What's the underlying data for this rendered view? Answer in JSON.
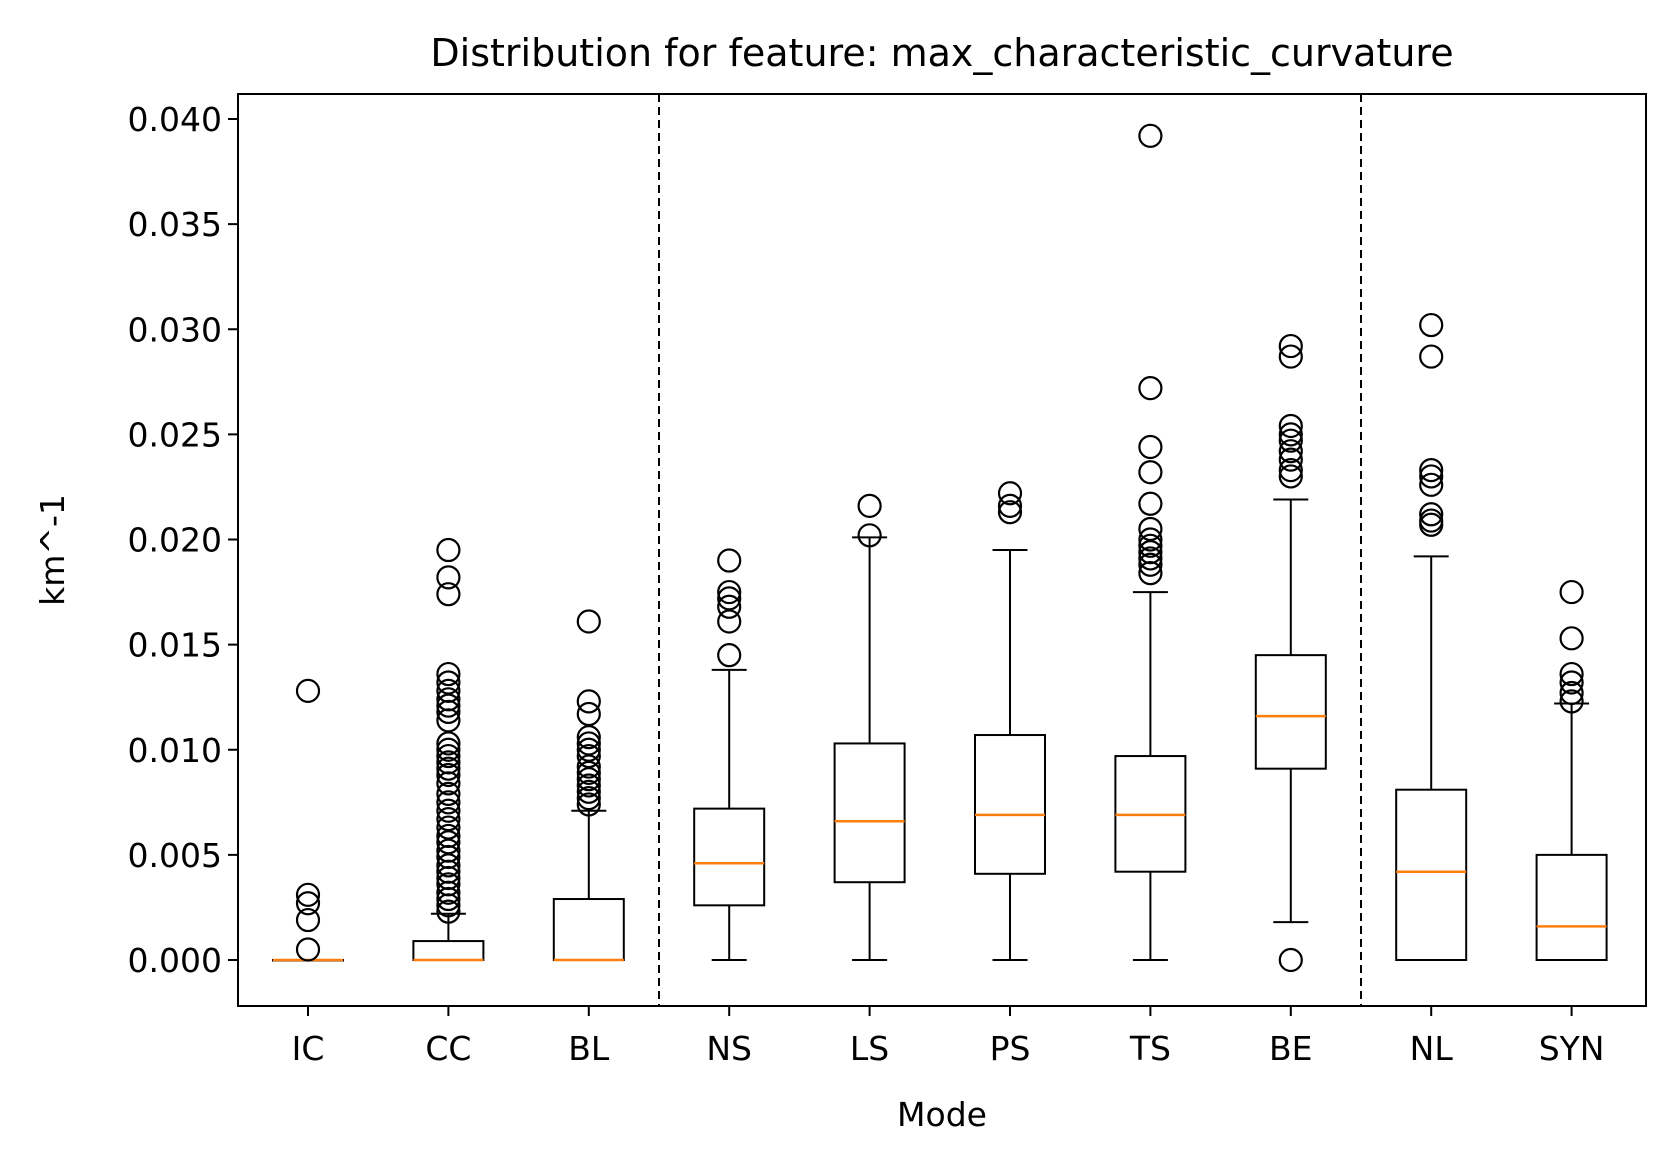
{
  "chart_data": {
    "type": "box",
    "title": "Distribution for feature: max_characteristic_curvature",
    "xlabel": "Mode",
    "ylabel": "km^-1",
    "ylim": [
      -0.002,
      0.041
    ],
    "yticks": [
      0.0,
      0.005,
      0.01,
      0.015,
      0.02,
      0.025,
      0.03,
      0.035,
      0.04
    ],
    "ytick_labels": [
      "0.000",
      "0.005",
      "0.010",
      "0.015",
      "0.020",
      "0.025",
      "0.030",
      "0.035",
      "0.040"
    ],
    "categories": [
      "IC",
      "CC",
      "BL",
      "NS",
      "LS",
      "PS",
      "TS",
      "BE",
      "NL",
      "SYN"
    ],
    "group_separators_after": [
      "BL",
      "BE"
    ],
    "grid": false,
    "colors": {
      "median": "#ff7f0e",
      "box": "#000000",
      "separator": "#000000"
    },
    "boxes": [
      {
        "category": "IC",
        "whisker_low": 0.0,
        "q1": 0.0,
        "median": 0.0,
        "q3": 0.0,
        "whisker_high": 0.0,
        "outliers": [
          0.0128,
          0.0031,
          0.0027,
          0.0019,
          0.0005
        ]
      },
      {
        "category": "CC",
        "whisker_low": 0.0,
        "q1": 0.0,
        "median": 0.0,
        "q3": 0.0009,
        "whisker_high": 0.0022,
        "outliers": [
          0.0195,
          0.0182,
          0.0174,
          0.0136,
          0.0132,
          0.0128,
          0.0124,
          0.0121,
          0.0118,
          0.0114,
          0.0103,
          0.01,
          0.0097,
          0.0094,
          0.0091,
          0.0088,
          0.0084,
          0.0079,
          0.0075,
          0.0071,
          0.0067,
          0.0063,
          0.0059,
          0.0056,
          0.0052,
          0.0049,
          0.0045,
          0.0042,
          0.0039,
          0.0036,
          0.0032,
          0.0029,
          0.0026,
          0.0023
        ]
      },
      {
        "category": "BL",
        "whisker_low": 0.0,
        "q1": 0.0,
        "median": 0.0,
        "q3": 0.0029,
        "whisker_high": 0.0071,
        "outliers": [
          0.0161,
          0.0123,
          0.0117,
          0.0106,
          0.0103,
          0.01,
          0.0097,
          0.0092,
          0.0089,
          0.0086,
          0.0083,
          0.008,
          0.0077,
          0.0074
        ]
      },
      {
        "category": "NS",
        "whisker_low": 0.0,
        "q1": 0.0026,
        "median": 0.0046,
        "q3": 0.0072,
        "whisker_high": 0.0138,
        "outliers": [
          0.019,
          0.0175,
          0.0172,
          0.0168,
          0.0161,
          0.0145
        ]
      },
      {
        "category": "LS",
        "whisker_low": 0.0,
        "q1": 0.0037,
        "median": 0.0066,
        "q3": 0.0103,
        "whisker_high": 0.0201,
        "outliers": [
          0.0216,
          0.0202
        ]
      },
      {
        "category": "PS",
        "whisker_low": 0.0,
        "q1": 0.0041,
        "median": 0.0069,
        "q3": 0.0107,
        "whisker_high": 0.0195,
        "outliers": [
          0.0222,
          0.0216,
          0.0213
        ]
      },
      {
        "category": "TS",
        "whisker_low": 0.0,
        "q1": 0.0042,
        "median": 0.0069,
        "q3": 0.0097,
        "whisker_high": 0.0175,
        "outliers": [
          0.0392,
          0.0272,
          0.0244,
          0.0232,
          0.0217,
          0.0205,
          0.02,
          0.0197,
          0.0194,
          0.0191,
          0.0188,
          0.0184
        ]
      },
      {
        "category": "BE",
        "whisker_low": 0.0018,
        "q1": 0.0091,
        "median": 0.0116,
        "q3": 0.0145,
        "whisker_high": 0.0219,
        "outliers": [
          0.0292,
          0.0287,
          0.0254,
          0.025,
          0.0247,
          0.0242,
          0.0238,
          0.0233,
          0.023,
          0.0
        ]
      },
      {
        "category": "NL",
        "whisker_low": 0.0,
        "q1": 0.0,
        "median": 0.0042,
        "q3": 0.0081,
        "whisker_high": 0.0192,
        "outliers": [
          0.0302,
          0.0287,
          0.0233,
          0.023,
          0.0226,
          0.0212,
          0.0209,
          0.0207
        ]
      },
      {
        "category": "SYN",
        "whisker_low": 0.0,
        "q1": 0.0,
        "median": 0.0016,
        "q3": 0.005,
        "whisker_high": 0.0122,
        "outliers": [
          0.0175,
          0.0153,
          0.0136,
          0.0132,
          0.0127,
          0.0123
        ]
      }
    ]
  }
}
